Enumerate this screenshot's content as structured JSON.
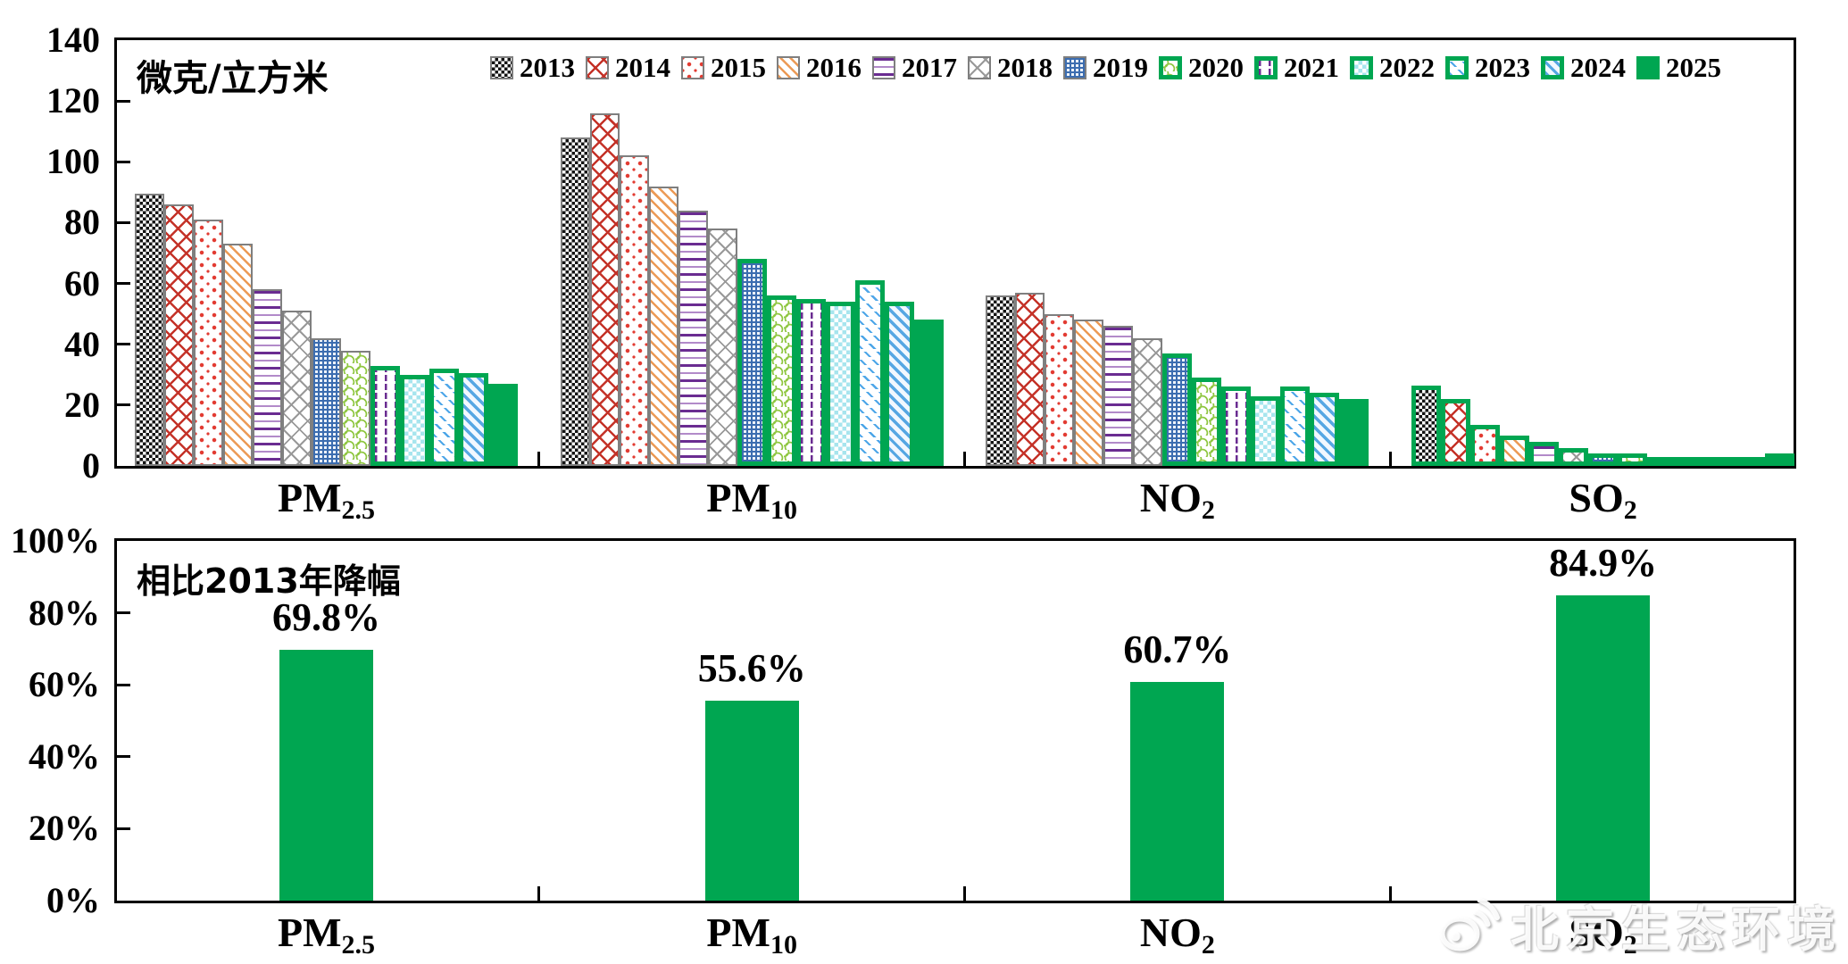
{
  "colors": {
    "green": "#00a651",
    "gray_border": "#7f7f7f",
    "axis": "#000000"
  },
  "watermark": {
    "text": "北京生态环境",
    "icon": "weibo-logo"
  },
  "top_chart": {
    "unit_label": "微克/立方米",
    "y_ticks": [
      "140",
      "120",
      "100",
      "80",
      "60",
      "40",
      "20",
      "0"
    ]
  },
  "bottom_chart": {
    "title": "相比2013年降幅",
    "y_ticks": [
      "100%",
      "80%",
      "60%",
      "40%",
      "20%",
      "0%"
    ]
  },
  "categories": [
    {
      "id": "PM2.5",
      "base": "PM",
      "sub": "2.5"
    },
    {
      "id": "PM10",
      "base": "PM",
      "sub": "10"
    },
    {
      "id": "NO2",
      "base": "NO",
      "sub": "2"
    },
    {
      "id": "SO2",
      "base": "SO",
      "sub": "2"
    }
  ],
  "legend": {
    "items": [
      {
        "year": "2013",
        "pattern": "black-checkerboard",
        "border": "gray"
      },
      {
        "year": "2014",
        "pattern": "red-crosshatch",
        "border": "gray"
      },
      {
        "year": "2015",
        "pattern": "red-dots",
        "border": "gray"
      },
      {
        "year": "2016",
        "pattern": "orange-diagonal-stripes",
        "border": "gray"
      },
      {
        "year": "2017",
        "pattern": "purple-horizontal-lines",
        "border": "gray"
      },
      {
        "year": "2018",
        "pattern": "gray-diamond-lattice",
        "border": "gray"
      },
      {
        "year": "2019",
        "pattern": "blue-dotted-grid",
        "border": "gray"
      },
      {
        "year": "2020",
        "pattern": "green-waves",
        "border": "green"
      },
      {
        "year": "2021",
        "pattern": "purple-vertical-dashes",
        "border": "green"
      },
      {
        "year": "2022",
        "pattern": "cyan-checkerboard",
        "border": "green"
      },
      {
        "year": "2023",
        "pattern": "blue-diagonal-dashes",
        "border": "green"
      },
      {
        "year": "2024",
        "pattern": "blue-diagonal-stripes",
        "border": "green"
      },
      {
        "year": "2025",
        "pattern": "solid-green",
        "border": "none"
      }
    ]
  },
  "chart_data": [
    {
      "type": "bar",
      "title": "微克/立方米",
      "categories": [
        "PM2.5",
        "PM10",
        "NO2",
        "SO2"
      ],
      "ylim": [
        0,
        140
      ],
      "y_tick_step": 20,
      "grid": false,
      "legend_position": "top-inside",
      "note": "met=true renders a thick green border (national standard attained), otherwise gray border",
      "series": [
        {
          "name": "2013",
          "values": [
            89.5,
            108,
            56,
            26.5
          ],
          "met": [
            false,
            false,
            false,
            true
          ]
        },
        {
          "name": "2014",
          "values": [
            86,
            116,
            57,
            22
          ],
          "met": [
            false,
            false,
            false,
            true
          ]
        },
        {
          "name": "2015",
          "values": [
            81,
            102,
            50,
            13.5
          ],
          "met": [
            false,
            false,
            false,
            true
          ]
        },
        {
          "name": "2016",
          "values": [
            73,
            92,
            48,
            10
          ],
          "met": [
            false,
            false,
            false,
            true
          ]
        },
        {
          "name": "2017",
          "values": [
            58,
            84,
            46,
            8
          ],
          "met": [
            false,
            false,
            false,
            true
          ]
        },
        {
          "name": "2018",
          "values": [
            51,
            78,
            42,
            6
          ],
          "met": [
            false,
            false,
            false,
            true
          ]
        },
        {
          "name": "2019",
          "values": [
            42,
            68,
            37,
            4
          ],
          "met": [
            false,
            true,
            true,
            true
          ]
        },
        {
          "name": "2020",
          "values": [
            38,
            56,
            29,
            4
          ],
          "met": [
            false,
            true,
            true,
            true
          ]
        },
        {
          "name": "2021",
          "values": [
            33,
            55,
            26,
            3
          ],
          "met": [
            true,
            true,
            true,
            true
          ]
        },
        {
          "name": "2022",
          "values": [
            30,
            54,
            23,
            3
          ],
          "met": [
            true,
            true,
            true,
            true
          ]
        },
        {
          "name": "2023",
          "values": [
            32,
            61,
            26,
            3
          ],
          "met": [
            true,
            true,
            true,
            true
          ]
        },
        {
          "name": "2024",
          "values": [
            30.5,
            54,
            24,
            3
          ],
          "met": [
            true,
            true,
            true,
            true
          ]
        },
        {
          "name": "2025",
          "values": [
            27,
            48,
            22,
            4
          ],
          "met": [
            true,
            true,
            true,
            true
          ]
        }
      ]
    },
    {
      "type": "bar",
      "title": "相比2013年降幅",
      "categories": [
        "PM2.5",
        "PM10",
        "NO2",
        "SO2"
      ],
      "ylim": [
        0,
        100
      ],
      "y_tick_step": 20,
      "values": [
        69.8,
        55.6,
        60.7,
        84.9
      ],
      "labels": [
        "69.8%",
        "55.6%",
        "60.7%",
        "84.9%"
      ],
      "bar_color": "#00a651"
    }
  ]
}
